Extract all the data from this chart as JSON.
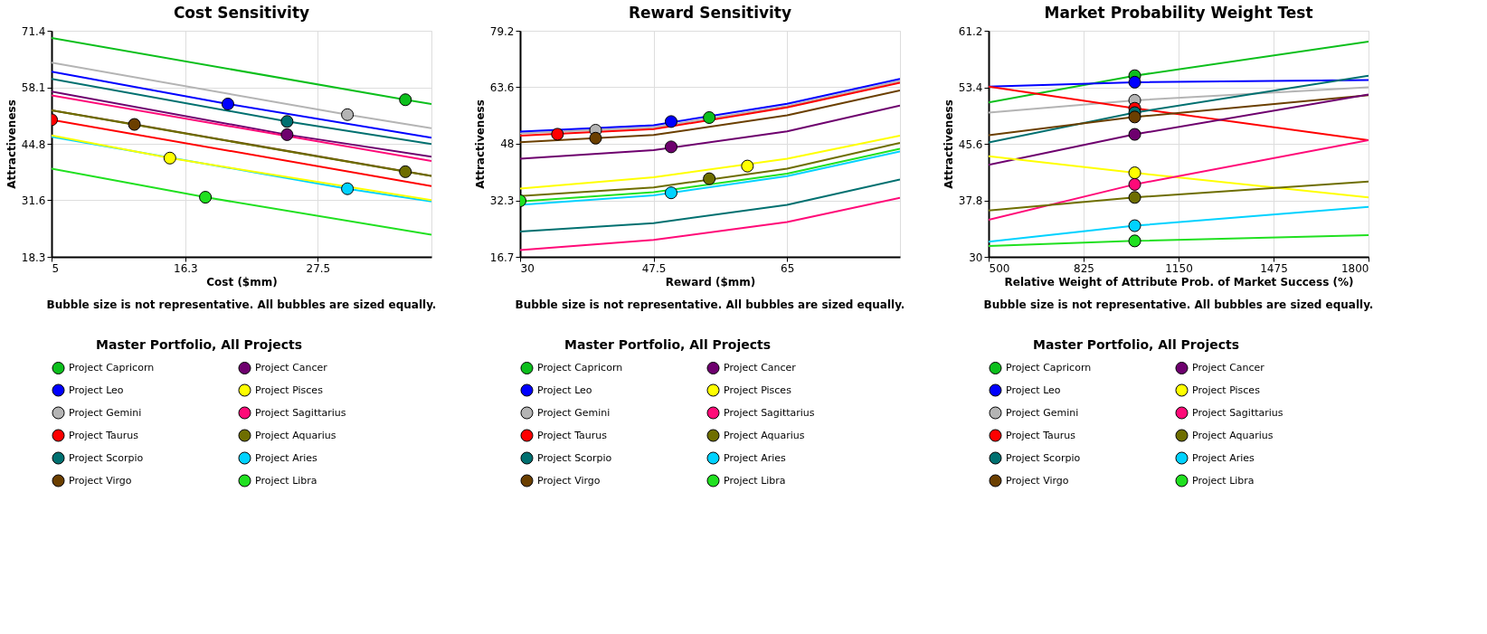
{
  "chart_data": [
    {
      "type": "line",
      "title": "Cost Sensitivity",
      "xlabel": "Cost ($mm)",
      "ylabel": "Attractiveness",
      "annotations": [
        "Bubble size is not representative. All bubbles are sized equally."
      ],
      "legend_title": "Master Portfolio,   All Projects",
      "legend": "bottom",
      "grid": true,
      "xlim": [
        5,
        37.1
      ],
      "xticks": [
        5,
        16.3,
        27.5
      ],
      "ylim": [
        18.3,
        71.4
      ],
      "yticks": [
        18.3,
        31.6,
        44.8,
        58.1,
        71.4
      ],
      "series": [
        {
          "color": "#0cbf1c",
          "x": [
            5,
            34.9,
            37.1
          ],
          "values": [
            69.7,
            55.2,
            54.2
          ]
        },
        {
          "color": "#b4b4b4",
          "x": [
            5,
            30.0,
            37.1
          ],
          "values": [
            63.9,
            51.7,
            48.5
          ]
        },
        {
          "color": "#0000ff",
          "x": [
            5,
            19.9,
            37.1
          ],
          "values": [
            61.8,
            54.2,
            46.3
          ]
        },
        {
          "color": "#ff0000",
          "x": [
            5,
            37.1
          ],
          "values": [
            50.5,
            34.9
          ]
        },
        {
          "color": "#007070",
          "x": [
            5,
            24.9,
            37.1
          ],
          "values": [
            60.1,
            50.1,
            44.8
          ]
        },
        {
          "color": "#6b3f00",
          "x": [
            5,
            12.0,
            37.1
          ],
          "values": [
            52.7,
            49.4,
            37.3
          ]
        },
        {
          "color": "#6e006e",
          "x": [
            5,
            24.9,
            37.1
          ],
          "values": [
            57.1,
            47.0,
            41.8
          ]
        },
        {
          "color": "#00d2ff",
          "x": [
            5,
            30.0,
            37.1
          ],
          "values": [
            46.5,
            34.3,
            31.3
          ]
        },
        {
          "color": "#ffff00",
          "x": [
            5,
            15.0,
            37.1
          ],
          "values": [
            46.8,
            41.5,
            31.6
          ]
        },
        {
          "color": "#ff0a78",
          "x": [
            5,
            37.1
          ],
          "values": [
            56.2,
            40.8
          ]
        },
        {
          "color": "#6e6e00",
          "x": [
            5,
            34.9,
            37.1
          ],
          "values": [
            52.7,
            38.3,
            37.3
          ]
        },
        {
          "color": "#20e020",
          "x": [
            5,
            18.0,
            37.1
          ],
          "values": [
            39.0,
            32.3,
            23.5
          ]
        },
        {
          "type": "scatter",
          "marker": "circle",
          "name": "Project Capricorn",
          "color": "#0cbf1c",
          "x": [
            34.9
          ],
          "values": [
            55.2
          ]
        },
        {
          "type": "scatter",
          "marker": "circle",
          "name": "Project Leo",
          "color": "#0000ff",
          "x": [
            19.9
          ],
          "values": [
            54.2
          ]
        },
        {
          "type": "scatter",
          "marker": "circle",
          "name": "Project Gemini",
          "color": "#b4b4b4",
          "x": [
            30.0
          ],
          "values": [
            51.7
          ]
        },
        {
          "type": "scatter",
          "marker": "circle",
          "name": "Project Taurus",
          "color": "#ff0000",
          "x": [
            5
          ],
          "values": [
            50.5
          ]
        },
        {
          "type": "scatter",
          "marker": "circle",
          "name": "Project Scorpio",
          "color": "#007070",
          "x": [
            24.9
          ],
          "values": [
            50.1
          ]
        },
        {
          "type": "scatter",
          "marker": "circle",
          "name": "Project Virgo",
          "color": "#6b3f00",
          "x": [
            12.0
          ],
          "values": [
            49.4
          ]
        },
        {
          "type": "scatter",
          "marker": "circle",
          "name": "Project Cancer",
          "color": "#6e006e",
          "x": [
            24.9
          ],
          "values": [
            47.0
          ]
        },
        {
          "type": "scatter",
          "marker": "circle",
          "name": "Project Pisces",
          "color": "#ffff00",
          "x": [
            15.0
          ],
          "values": [
            41.5
          ]
        },
        {
          "type": "scatter",
          "marker": "circle",
          "name": "Project Sagittarius",
          "color": "#ff0a78"
        },
        {
          "type": "scatter",
          "marker": "circle",
          "name": "Project Aquarius",
          "color": "#6e6e00",
          "x": [
            34.9
          ],
          "values": [
            38.3
          ]
        },
        {
          "type": "scatter",
          "marker": "circle",
          "name": "Project Aries",
          "color": "#00d2ff",
          "x": [
            30.0
          ],
          "values": [
            34.3
          ]
        },
        {
          "type": "scatter",
          "marker": "circle",
          "name": "Project Libra",
          "color": "#20e020",
          "x": [
            18.0
          ],
          "values": [
            32.3
          ]
        }
      ]
    },
    {
      "type": "line",
      "title": "Reward Sensitivity",
      "xlabel": "Reward ($mm)",
      "ylabel": "Attractiveness",
      "annotations": [
        "Bubble size is not representative. All bubbles are sized equally."
      ],
      "legend_title": "Master Portfolio,   All Projects",
      "legend": "bottom",
      "grid": true,
      "xlim": [
        30,
        79.8
      ],
      "xticks": [
        30,
        47.5,
        65
      ],
      "ylim": [
        16.7,
        79.2
      ],
      "yticks": [
        16.7,
        32.3,
        48,
        63.6,
        79.2
      ],
      "series": [
        {
          "color": "#b4b4b4",
          "x": [
            30,
            47.5,
            65,
            79.8
          ],
          "values": [
            50.8,
            52.5,
            58.4,
            65.3
          ]
        },
        {
          "color": "#ff0000",
          "x": [
            30,
            47.5,
            65,
            79.8
          ],
          "values": [
            50.2,
            52.0,
            58.0,
            64.8
          ]
        },
        {
          "color": "#0000ff",
          "x": [
            30,
            47.5,
            65,
            79.8
          ],
          "values": [
            51.3,
            53.1,
            59.0,
            65.9
          ]
        },
        {
          "color": "#007070",
          "x": [
            30,
            47.5,
            65,
            79.8
          ],
          "values": [
            23.7,
            26.0,
            31.1,
            38.1
          ]
        },
        {
          "color": "#6b3f00",
          "x": [
            30,
            47.5,
            65,
            79.8
          ],
          "values": [
            48.4,
            50.4,
            55.8,
            62.7
          ]
        },
        {
          "color": "#6e006e",
          "x": [
            30,
            47.5,
            65,
            79.8
          ],
          "values": [
            43.8,
            46.2,
            51.4,
            58.5
          ]
        },
        {
          "color": "#ffff00",
          "x": [
            30,
            47.5,
            65,
            79.8
          ],
          "values": [
            35.6,
            38.7,
            43.8,
            50.2
          ]
        },
        {
          "color": "#ff0a78",
          "x": [
            30,
            47.5,
            65,
            79.8
          ],
          "values": [
            18.6,
            21.4,
            26.3,
            33.0
          ]
        },
        {
          "color": "#6e6e00",
          "x": [
            30,
            47.5,
            65,
            79.8
          ],
          "values": [
            33.5,
            35.9,
            41.1,
            48.2
          ]
        },
        {
          "color": "#00d2ff",
          "x": [
            30,
            47.5,
            65,
            79.8
          ],
          "values": [
            31.1,
            33.7,
            39.0,
            45.8
          ]
        },
        {
          "color": "#20e020",
          "x": [
            30,
            47.5,
            65,
            79.8
          ],
          "values": [
            32.0,
            34.6,
            39.7,
            46.6
          ]
        },
        {
          "type": "scatter",
          "marker": "circle",
          "name": "Project Capricorn",
          "color": "#0cbf1c",
          "x": [
            54.8
          ],
          "values": [
            55.2
          ]
        },
        {
          "type": "scatter",
          "marker": "circle",
          "name": "Project Leo",
          "color": "#0000ff",
          "x": [
            49.8
          ],
          "values": [
            54.1
          ]
        },
        {
          "type": "scatter",
          "marker": "circle",
          "name": "Project Gemini",
          "color": "#b4b4b4",
          "x": [
            39.9
          ],
          "values": [
            51.7
          ]
        },
        {
          "type": "scatter",
          "marker": "circle",
          "name": "Project Taurus",
          "color": "#ff0000",
          "x": [
            34.9
          ],
          "values": [
            50.6
          ]
        },
        {
          "type": "scatter",
          "marker": "circle",
          "name": "Project Scorpio",
          "color": "#007070"
        },
        {
          "type": "scatter",
          "marker": "circle",
          "name": "Project Virgo",
          "color": "#6b3f00",
          "x": [
            39.9
          ],
          "values": [
            49.5
          ]
        },
        {
          "type": "scatter",
          "marker": "circle",
          "name": "Project Cancer",
          "color": "#6e006e",
          "x": [
            49.8
          ],
          "values": [
            47.1
          ]
        },
        {
          "type": "scatter",
          "marker": "circle",
          "name": "Project Pisces",
          "color": "#ffff00",
          "x": [
            59.8
          ],
          "values": [
            41.8
          ]
        },
        {
          "type": "scatter",
          "marker": "circle",
          "name": "Project Sagittarius",
          "color": "#ff0a78"
        },
        {
          "type": "scatter",
          "marker": "circle",
          "name": "Project Aquarius",
          "color": "#6e6e00",
          "x": [
            54.8
          ],
          "values": [
            38.3
          ]
        },
        {
          "type": "scatter",
          "marker": "circle",
          "name": "Project Aries",
          "color": "#00d2ff",
          "x": [
            49.8
          ],
          "values": [
            34.4
          ]
        },
        {
          "type": "scatter",
          "marker": "circle",
          "name": "Project Libra",
          "color": "#20e020",
          "x": [
            30
          ],
          "values": [
            32.2
          ]
        }
      ]
    },
    {
      "type": "line",
      "title": "Market Probability Weight Test",
      "xlabel": "Relative Weight of Attribute Prob. of Market Success (%)",
      "ylabel": "Attractiveness",
      "annotations": [
        "Bubble size is not representative. All bubbles are sized equally."
      ],
      "legend_title": "Master Portfolio,   All Projects",
      "legend": "bottom",
      "grid": true,
      "xlim": [
        500,
        1800
      ],
      "xticks": [
        500,
        825,
        1150,
        1475,
        1800
      ],
      "ylim": [
        30,
        61.2
      ],
      "yticks": [
        30,
        37.8,
        45.6,
        53.4,
        61.2
      ],
      "series": [
        {
          "color": "#0cbf1c",
          "x": [
            500,
            1000,
            1800
          ],
          "values": [
            51.3,
            55.0,
            59.7
          ]
        },
        {
          "color": "#0000ff",
          "x": [
            500,
            1000,
            1800
          ],
          "values": [
            53.5,
            54.1,
            54.4
          ]
        },
        {
          "color": "#b4b4b4",
          "x": [
            500,
            1000,
            1800
          ],
          "values": [
            49.9,
            51.6,
            53.4
          ]
        },
        {
          "color": "#ff0000",
          "x": [
            500,
            1000,
            1800
          ],
          "values": [
            53.5,
            50.5,
            46.1
          ]
        },
        {
          "color": "#007070",
          "x": [
            500,
            1000,
            1800
          ],
          "values": [
            45.8,
            49.9,
            55.0
          ]
        },
        {
          "color": "#6b3f00",
          "x": [
            500,
            1000,
            1800
          ],
          "values": [
            46.8,
            49.3,
            52.3
          ]
        },
        {
          "color": "#6e006e",
          "x": [
            500,
            1000,
            1800
          ],
          "values": [
            42.7,
            46.9,
            52.4
          ]
        },
        {
          "color": "#ffff00",
          "x": [
            500,
            1000,
            1800
          ],
          "values": [
            43.9,
            41.6,
            38.2
          ]
        },
        {
          "color": "#ff0a78",
          "x": [
            500,
            1000,
            1800
          ],
          "values": [
            35.1,
            40.0,
            46.1
          ]
        },
        {
          "color": "#6e6e00",
          "x": [
            500,
            1000,
            1800
          ],
          "values": [
            36.4,
            38.2,
            40.4
          ]
        },
        {
          "color": "#00d2ff",
          "x": [
            500,
            1000,
            1800
          ],
          "values": [
            32.1,
            34.3,
            36.9
          ]
        },
        {
          "color": "#20e020",
          "x": [
            500,
            1000,
            1800
          ],
          "values": [
            31.5,
            32.2,
            33.0
          ]
        },
        {
          "type": "scatter",
          "marker": "circle",
          "name": "Project Capricorn",
          "color": "#0cbf1c",
          "x": [
            1000
          ],
          "values": [
            55.0
          ]
        },
        {
          "type": "scatter",
          "marker": "circle",
          "name": "Project Leo",
          "color": "#0000ff",
          "x": [
            1000
          ],
          "values": [
            54.1
          ]
        },
        {
          "type": "scatter",
          "marker": "circle",
          "name": "Project Gemini",
          "color": "#b4b4b4",
          "x": [
            1000
          ],
          "values": [
            51.6
          ]
        },
        {
          "type": "scatter",
          "marker": "circle",
          "name": "Project Taurus",
          "color": "#ff0000",
          "x": [
            1000
          ],
          "values": [
            50.5
          ]
        },
        {
          "type": "scatter",
          "marker": "circle",
          "name": "Project Scorpio",
          "color": "#007070",
          "x": [
            1000
          ],
          "values": [
            49.9
          ]
        },
        {
          "type": "scatter",
          "marker": "circle",
          "name": "Project Virgo",
          "color": "#6b3f00",
          "x": [
            1000
          ],
          "values": [
            49.3
          ]
        },
        {
          "type": "scatter",
          "marker": "circle",
          "name": "Project Cancer",
          "color": "#6e006e",
          "x": [
            1000
          ],
          "values": [
            46.9
          ]
        },
        {
          "type": "scatter",
          "marker": "circle",
          "name": "Project Pisces",
          "color": "#ffff00",
          "x": [
            1000
          ],
          "values": [
            41.6
          ]
        },
        {
          "type": "scatter",
          "marker": "circle",
          "name": "Project Sagittarius",
          "color": "#ff0a78",
          "x": [
            1000
          ],
          "values": [
            40.0
          ]
        },
        {
          "type": "scatter",
          "marker": "circle",
          "name": "Project Aquarius",
          "color": "#6e6e00",
          "x": [
            1000
          ],
          "values": [
            38.2
          ]
        },
        {
          "type": "scatter",
          "marker": "circle",
          "name": "Project Aries",
          "color": "#00d2ff",
          "x": [
            1000
          ],
          "values": [
            34.3
          ]
        },
        {
          "type": "scatter",
          "marker": "circle",
          "name": "Project Libra",
          "color": "#20e020",
          "x": [
            1000
          ],
          "values": [
            32.2
          ]
        }
      ]
    }
  ]
}
